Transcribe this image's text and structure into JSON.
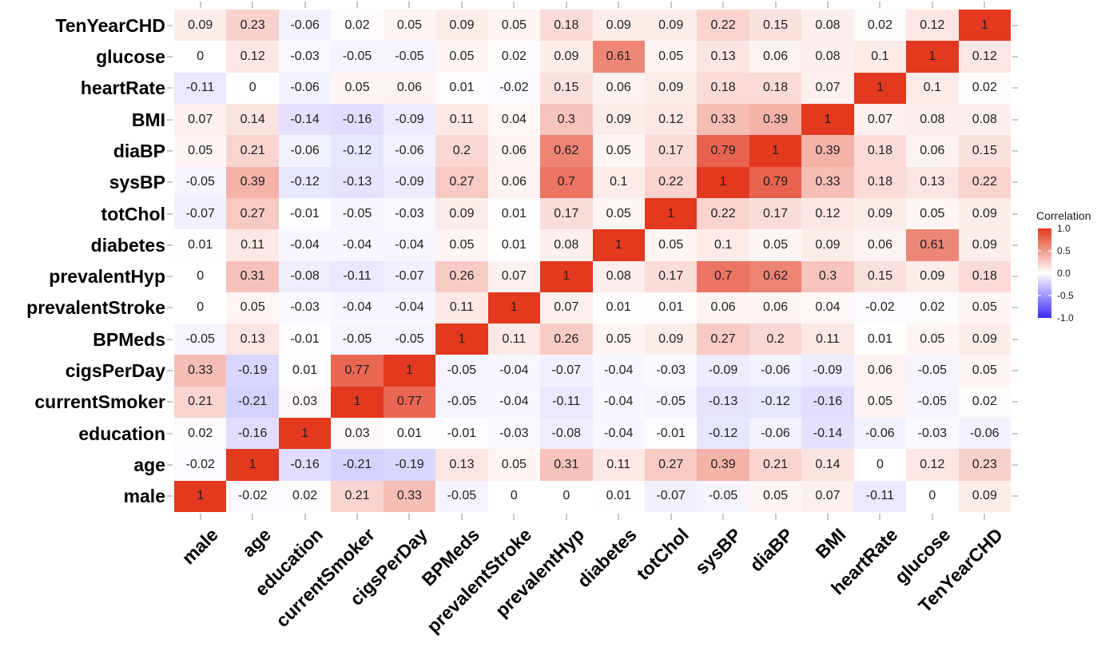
{
  "chart_data": {
    "type": "heatmap",
    "title": "",
    "x_categories": [
      "male",
      "age",
      "education",
      "currentSmoker",
      "cigsPerDay",
      "BPMeds",
      "prevalentStroke",
      "prevalentHyp",
      "diabetes",
      "totChol",
      "sysBP",
      "diaBP",
      "BMI",
      "heartRate",
      "glucose",
      "TenYearCHD"
    ],
    "y_categories_top_to_bottom": [
      "TenYearCHD",
      "glucose",
      "heartRate",
      "BMI",
      "diaBP",
      "sysBP",
      "totChol",
      "diabetes",
      "prevalentHyp",
      "prevalentStroke",
      "BPMeds",
      "cigsPerDay",
      "currentSmoker",
      "education",
      "age",
      "male"
    ],
    "matrix_rows_top_to_bottom": [
      [
        0.09,
        0.23,
        -0.06,
        0.02,
        0.05,
        0.09,
        0.05,
        0.18,
        0.09,
        0.09,
        0.22,
        0.15,
        0.08,
        0.02,
        0.12,
        1
      ],
      [
        0,
        0.12,
        -0.03,
        -0.05,
        -0.05,
        0.05,
        0.02,
        0.09,
        0.61,
        0.05,
        0.13,
        0.06,
        0.08,
        0.1,
        1,
        0.12
      ],
      [
        -0.11,
        0,
        -0.06,
        0.05,
        0.06,
        0.01,
        -0.02,
        0.15,
        0.06,
        0.09,
        0.18,
        0.18,
        0.07,
        1,
        0.1,
        0.02
      ],
      [
        0.07,
        0.14,
        -0.14,
        -0.16,
        -0.09,
        0.11,
        0.04,
        0.3,
        0.09,
        0.12,
        0.33,
        0.39,
        1,
        0.07,
        0.08,
        0.08
      ],
      [
        0.05,
        0.21,
        -0.06,
        -0.12,
        -0.06,
        0.2,
        0.06,
        0.62,
        0.05,
        0.17,
        0.79,
        1,
        0.39,
        0.18,
        0.06,
        0.15
      ],
      [
        -0.05,
        0.39,
        -0.12,
        -0.13,
        -0.09,
        0.27,
        0.06,
        0.7,
        0.1,
        0.22,
        1,
        0.79,
        0.33,
        0.18,
        0.13,
        0.22
      ],
      [
        -0.07,
        0.27,
        -0.01,
        -0.05,
        -0.03,
        0.09,
        0.01,
        0.17,
        0.05,
        1,
        0.22,
        0.17,
        0.12,
        0.09,
        0.05,
        0.09
      ],
      [
        0.01,
        0.11,
        -0.04,
        -0.04,
        -0.04,
        0.05,
        0.01,
        0.08,
        1,
        0.05,
        0.1,
        0.05,
        0.09,
        0.06,
        0.61,
        0.09
      ],
      [
        0,
        0.31,
        -0.08,
        -0.11,
        -0.07,
        0.26,
        0.07,
        1,
        0.08,
        0.17,
        0.7,
        0.62,
        0.3,
        0.15,
        0.09,
        0.18
      ],
      [
        0,
        0.05,
        -0.03,
        -0.04,
        -0.04,
        0.11,
        1,
        0.07,
        0.01,
        0.01,
        0.06,
        0.06,
        0.04,
        -0.02,
        0.02,
        0.05
      ],
      [
        -0.05,
        0.13,
        -0.01,
        -0.05,
        -0.05,
        1,
        0.11,
        0.26,
        0.05,
        0.09,
        0.27,
        0.2,
        0.11,
        0.01,
        0.05,
        0.09
      ],
      [
        0.33,
        -0.19,
        0.01,
        0.77,
        1,
        -0.05,
        -0.04,
        -0.07,
        -0.04,
        -0.03,
        -0.09,
        -0.06,
        -0.09,
        0.06,
        -0.05,
        0.05
      ],
      [
        0.21,
        -0.21,
        0.03,
        1,
        0.77,
        -0.05,
        -0.04,
        -0.11,
        -0.04,
        -0.05,
        -0.13,
        -0.12,
        -0.16,
        0.05,
        -0.05,
        0.02
      ],
      [
        0.02,
        -0.16,
        1,
        0.03,
        0.01,
        -0.01,
        -0.03,
        -0.08,
        -0.04,
        -0.01,
        -0.12,
        -0.06,
        -0.14,
        -0.06,
        -0.03,
        -0.06
      ],
      [
        -0.02,
        1,
        -0.16,
        -0.21,
        -0.19,
        0.13,
        0.05,
        0.31,
        0.11,
        0.27,
        0.39,
        0.21,
        0.14,
        0,
        0.12,
        0.23
      ],
      [
        1,
        -0.02,
        0.02,
        0.21,
        0.33,
        -0.05,
        0,
        0,
        0.01,
        -0.07,
        -0.05,
        0.05,
        0.07,
        -0.11,
        0,
        0.09
      ]
    ],
    "value_domain": [
      -1,
      1
    ],
    "legend": {
      "title": "Correlation",
      "ticks": [
        "1.0",
        "0.5",
        "0.0",
        "-0.5",
        "-1.0"
      ],
      "tick_values": [
        1,
        0.5,
        0,
        -0.5,
        -1
      ],
      "position": "right"
    },
    "colors": {
      "high": "#E2391F",
      "mid": "#FFFFFF",
      "low": "#3B2BFB",
      "value_text": "#1F1F1F",
      "axis_tick": "#C8C8C8"
    },
    "grid": false
  }
}
